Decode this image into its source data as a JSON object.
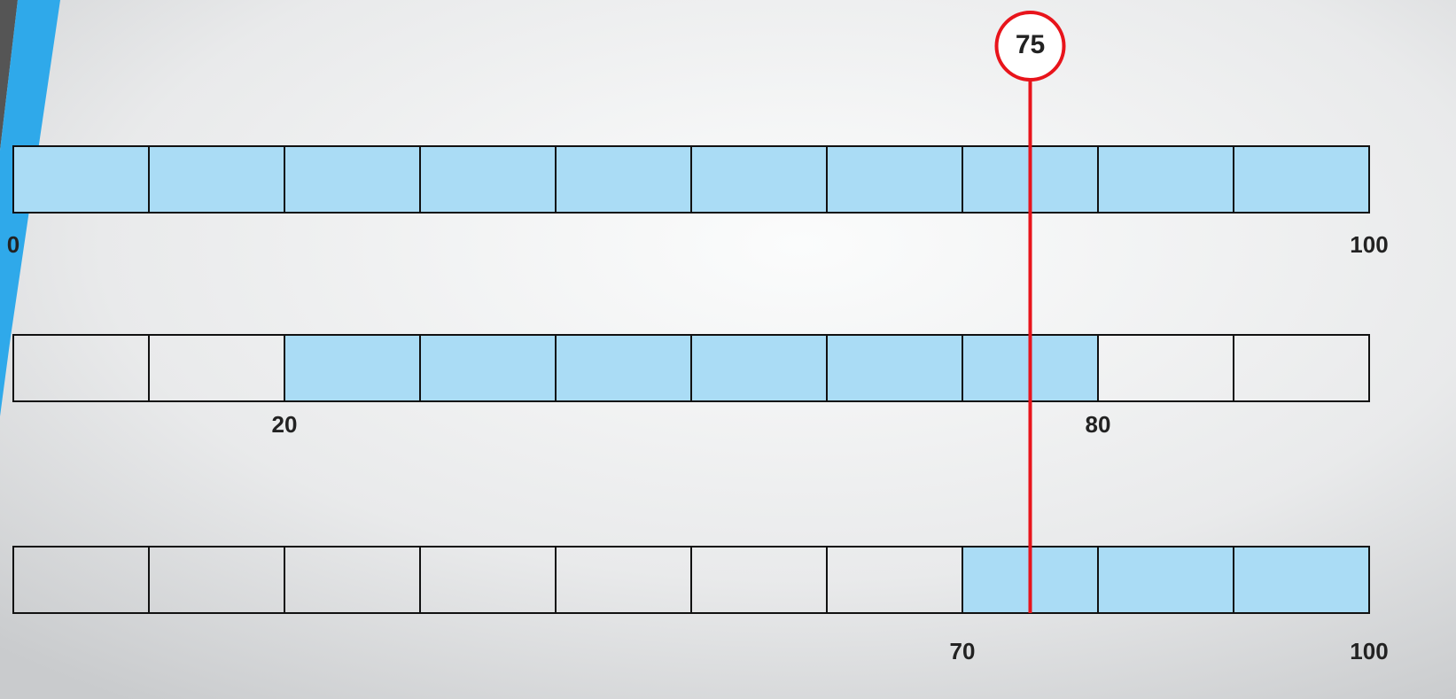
{
  "marker": 75,
  "rows": [
    {
      "from": 0,
      "to": 100
    },
    {
      "from": 20,
      "to": 80
    },
    {
      "from": 70,
      "to": 100
    }
  ]
}
